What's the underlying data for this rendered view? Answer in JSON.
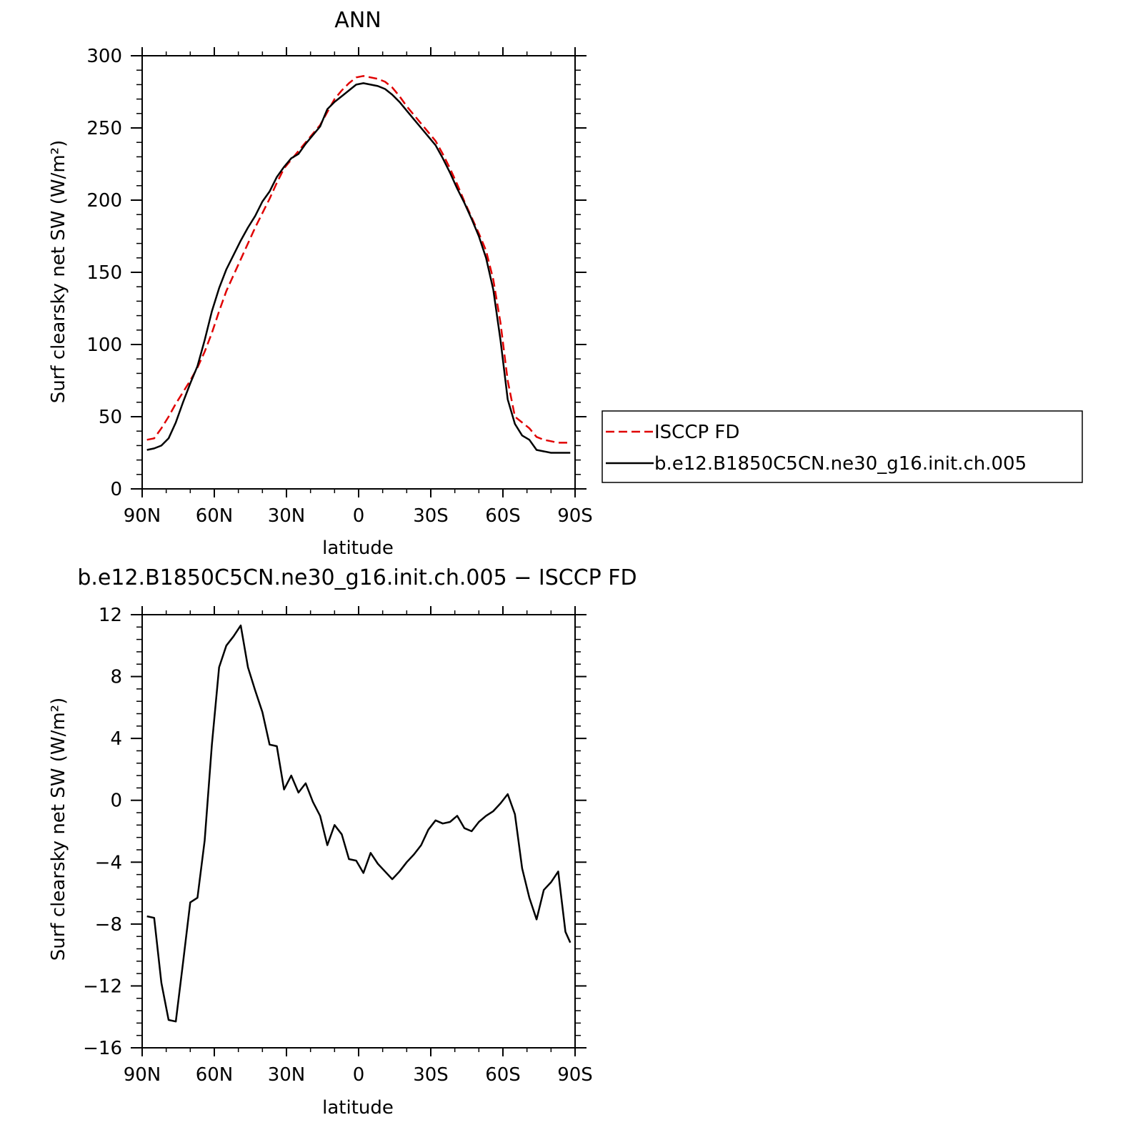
{
  "chart_data": [
    {
      "type": "line",
      "title": "ANN",
      "xlabel": "latitude",
      "ylabel": "Surf clearsky net SW (W/m²)",
      "xlim": [
        90,
        -90
      ],
      "ylim": [
        0,
        300
      ],
      "x_ticks": [
        90,
        60,
        30,
        0,
        -30,
        -60,
        -90
      ],
      "x_tick_labels": [
        "90N",
        "60N",
        "30N",
        "0",
        "30S",
        "60S",
        "90S"
      ],
      "y_ticks": [
        0,
        50,
        100,
        150,
        200,
        250,
        300
      ],
      "y_tick_labels": [
        "0",
        "50",
        "100",
        "150",
        "200",
        "250",
        "300"
      ],
      "legend_position": "right",
      "series": [
        {
          "name": "ISCCP FD",
          "color": "#e00000",
          "style": "dashed",
          "x": [
            88,
            85,
            82,
            79,
            76,
            73,
            70,
            67,
            64,
            61,
            58,
            55,
            52,
            49,
            46,
            43,
            40,
            37,
            34,
            31,
            28,
            25,
            22,
            19,
            16,
            13,
            10,
            7,
            4,
            1,
            -2,
            -5,
            -8,
            -11,
            -14,
            -17,
            -20,
            -23,
            -26,
            -29,
            -32,
            -35,
            -38,
            -41,
            -44,
            -47,
            -50,
            -53,
            -56,
            -59,
            -62,
            -65,
            -68,
            -71,
            -74,
            -77,
            -80,
            -83,
            -86,
            -88
          ],
          "values": [
            34,
            35,
            42,
            50,
            59,
            67,
            75,
            84,
            95,
            108,
            123,
            137,
            148,
            159,
            170,
            181,
            191,
            201,
            212,
            222,
            228,
            234,
            240,
            246,
            252,
            261,
            270,
            276,
            281,
            285,
            286,
            285,
            284,
            282,
            278,
            272,
            265,
            259,
            253,
            247,
            241,
            232,
            222,
            211,
            199,
            188,
            177,
            165,
            145,
            115,
            75,
            50,
            46,
            42,
            36,
            34,
            33,
            32,
            32,
            32
          ]
        },
        {
          "name": "b.e12.B1850C5CN.ne30_g16.init.ch.005",
          "color": "#000000",
          "style": "solid",
          "x": [
            88,
            85,
            82,
            79,
            76,
            73,
            70,
            67,
            64,
            61,
            58,
            55,
            52,
            49,
            46,
            43,
            40,
            37,
            34,
            31,
            28,
            25,
            22,
            19,
            16,
            13,
            10,
            7,
            4,
            1,
            -2,
            -5,
            -8,
            -11,
            -14,
            -17,
            -20,
            -23,
            -26,
            -29,
            -32,
            -35,
            -38,
            -41,
            -44,
            -47,
            -50,
            -53,
            -56,
            -59,
            -62,
            -65,
            -68,
            -71,
            -74,
            -77,
            -80,
            -83,
            -86,
            -88
          ],
          "values": [
            27,
            28,
            30,
            35,
            46,
            60,
            73,
            85,
            103,
            123,
            139,
            152,
            162,
            172,
            181,
            189,
            199,
            206,
            216,
            223,
            229,
            232,
            239,
            245,
            251,
            263,
            268,
            272,
            276,
            280,
            281,
            280,
            279,
            277,
            273,
            268,
            262,
            256,
            250,
            244,
            238,
            229,
            219,
            208,
            198,
            187,
            175,
            160,
            138,
            103,
            62,
            45,
            37,
            34,
            27,
            26,
            25,
            25,
            25,
            25
          ]
        }
      ]
    },
    {
      "type": "line",
      "title": "b.e12.B1850C5CN.ne30_g16.init.ch.005 − ISCCP FD",
      "xlabel": "latitude",
      "ylabel": "Surf clearsky net SW (W/m²)",
      "xlim": [
        90,
        -90
      ],
      "ylim": [
        -16,
        12
      ],
      "x_ticks": [
        90,
        60,
        30,
        0,
        -30,
        -60,
        -90
      ],
      "x_tick_labels": [
        "90N",
        "60N",
        "30N",
        "0",
        "30S",
        "60S",
        "90S"
      ],
      "y_ticks": [
        12,
        8,
        4,
        0,
        -4,
        -8,
        -12,
        -16
      ],
      "y_tick_labels": [
        "12",
        "8",
        "4",
        "0",
        "−4",
        "−8",
        "−12",
        "−16"
      ],
      "series": [
        {
          "color": "#000000",
          "style": "solid",
          "x": [
            88,
            85,
            82,
            79,
            76,
            73,
            70,
            67,
            64,
            61,
            58,
            55,
            52,
            49,
            46,
            43,
            40,
            37,
            34,
            31,
            28,
            25,
            22,
            19,
            16,
            13,
            10,
            7,
            4,
            1,
            -2,
            -5,
            -8,
            -11,
            -14,
            -17,
            -20,
            -23,
            -26,
            -29,
            -32,
            -35,
            -38,
            -41,
            -44,
            -47,
            -50,
            -53,
            -56,
            -59,
            -62,
            -65,
            -68,
            -71,
            -74,
            -77,
            -80,
            -83,
            -86,
            -88
          ],
          "values": [
            -7.5,
            -7.6,
            -11.8,
            -14.2,
            -14.3,
            -10.5,
            -6.6,
            -6.3,
            -2.6,
            3.6,
            8.6,
            10.0,
            10.6,
            11.3,
            8.6,
            7.1,
            5.7,
            3.6,
            3.5,
            0.7,
            1.6,
            0.5,
            1.1,
            -0.1,
            -1.0,
            -2.9,
            -1.6,
            -2.2,
            -3.8,
            -3.9,
            -4.7,
            -3.4,
            -4.1,
            -4.6,
            -5.1,
            -4.6,
            -4.0,
            -3.5,
            -2.9,
            -1.9,
            -1.3,
            -1.5,
            -1.4,
            -1.0,
            -1.8,
            -2.0,
            -1.4,
            -1.0,
            -0.7,
            -0.2,
            0.4,
            -0.9,
            -4.4,
            -6.3,
            -7.7,
            -5.8,
            -5.3,
            -4.6,
            -8.5,
            -9.2
          ]
        }
      ]
    }
  ]
}
